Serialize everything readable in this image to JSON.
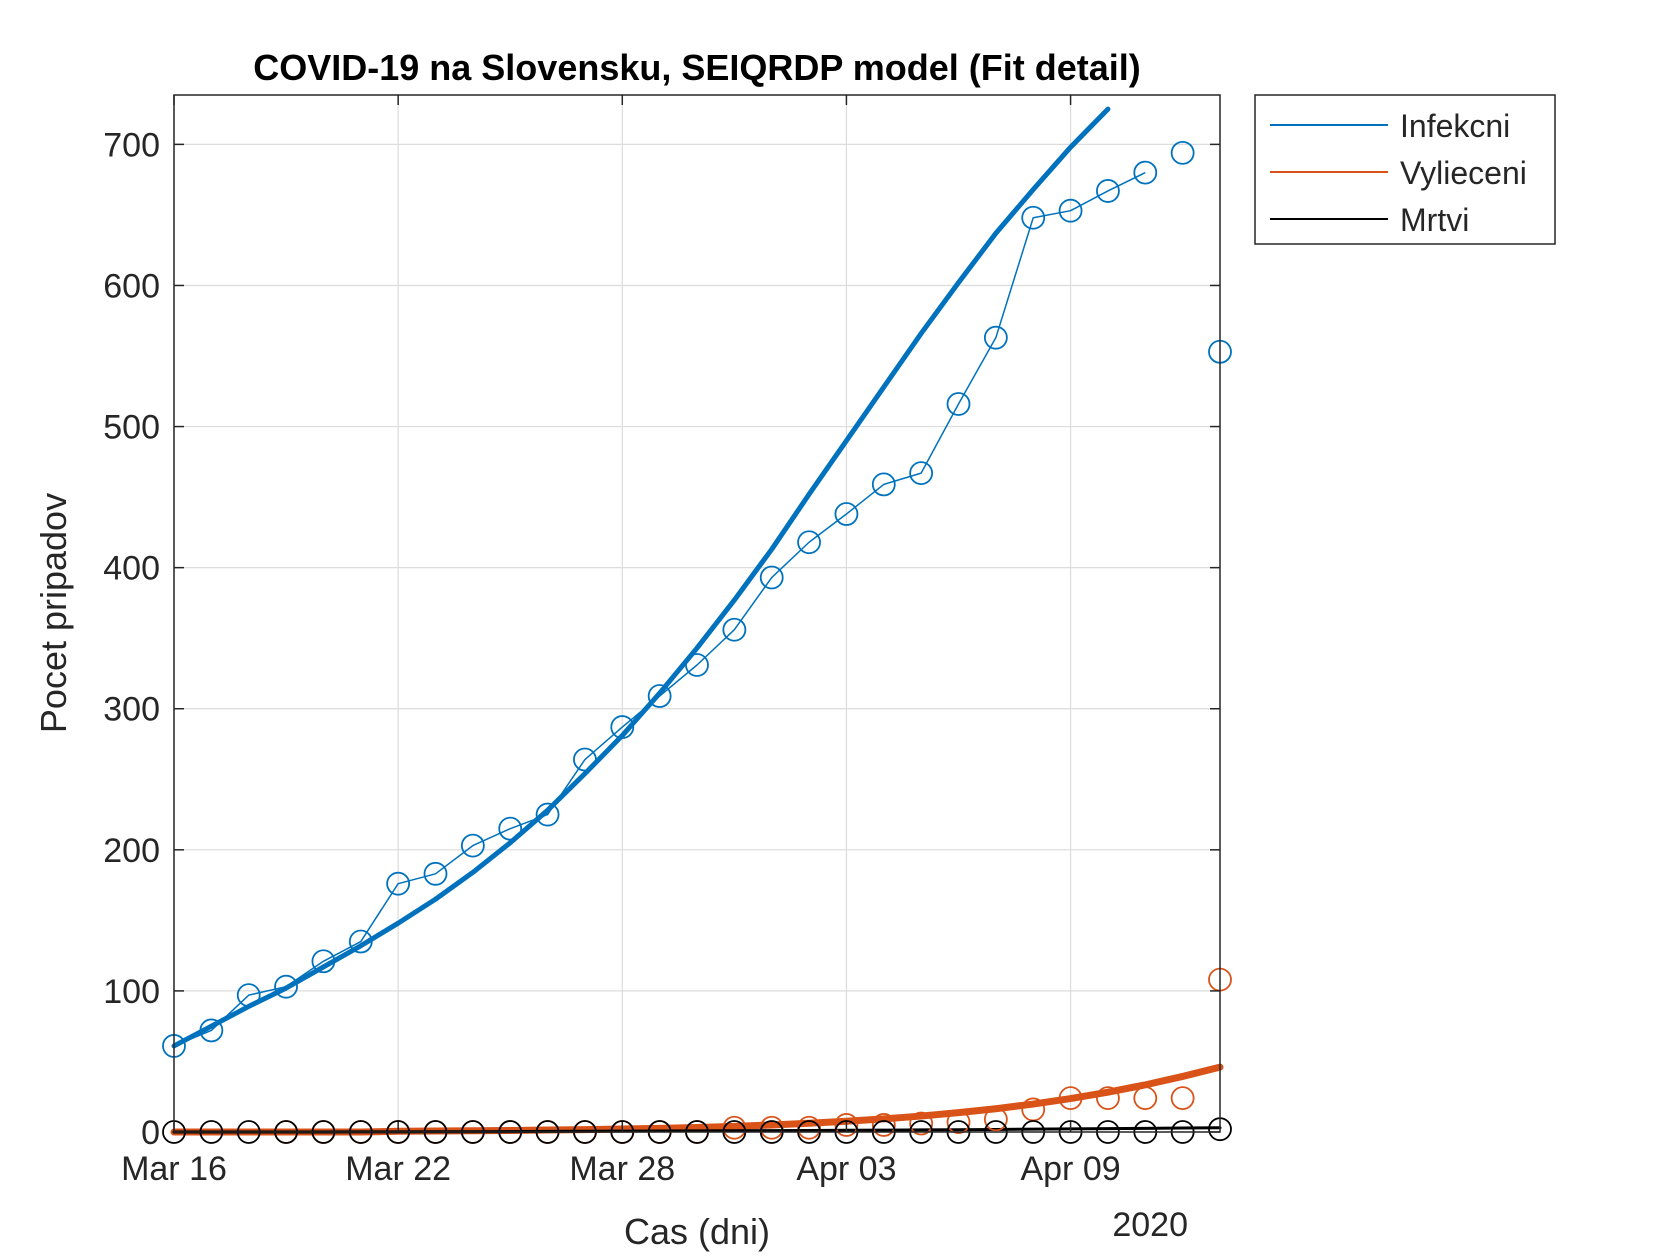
{
  "chart_data": {
    "type": "line",
    "title": "COVID-19 na Slovensku, SEIQRDP model (Fit detail)",
    "xlabel": "Cas (dni)",
    "ylabel": "Pocet pripadov",
    "x_tick_labels": [
      "Mar 16",
      "Mar 22",
      "Mar 28",
      "Apr 03",
      "Apr 09"
    ],
    "x_secondary_label": "2020",
    "y_tick_labels": [
      "0",
      "100",
      "200",
      "300",
      "400",
      "500",
      "600",
      "700"
    ],
    "xlim": [
      "2020-03-16",
      "2020-04-13"
    ],
    "ylim": [
      0,
      735
    ],
    "grid": true,
    "legend_position": "outside-top-right",
    "colors": {
      "infekcni": "#0072BD",
      "vylieceni": "#D95319",
      "mrtvi": "#000000",
      "grid": "#dcdcdc",
      "axis": "#262626"
    },
    "dates": [
      "2020-03-16",
      "2020-03-17",
      "2020-03-18",
      "2020-03-19",
      "2020-03-20",
      "2020-03-21",
      "2020-03-22",
      "2020-03-23",
      "2020-03-24",
      "2020-03-25",
      "2020-03-26",
      "2020-03-27",
      "2020-03-28",
      "2020-03-29",
      "2020-03-30",
      "2020-03-31",
      "2020-04-01",
      "2020-04-02",
      "2020-04-03",
      "2020-04-04",
      "2020-04-05",
      "2020-04-06",
      "2020-04-07",
      "2020-04-08",
      "2020-04-09",
      "2020-04-10",
      "2020-04-11",
      "2020-04-12",
      "2020-04-13"
    ],
    "series": [
      {
        "name": "Infekcni",
        "observed": [
          61,
          72,
          97,
          103,
          121,
          135,
          176,
          183,
          203,
          215,
          225,
          264,
          287,
          309,
          331,
          356,
          393,
          418,
          438,
          459,
          467,
          516,
          563,
          648,
          653,
          667,
          680,
          694,
          553
        ],
        "fitted": [
          61,
          75,
          89,
          102,
          117,
          132,
          148,
          165,
          184,
          205,
          228,
          254,
          281,
          311,
          343,
          377,
          413,
          452,
          490,
          528,
          566,
          602,
          637,
          668,
          698,
          725
        ]
      },
      {
        "name": "Vylieceni",
        "observed": [
          null,
          null,
          null,
          0,
          0,
          0,
          0,
          0,
          0,
          0,
          0,
          0,
          0,
          0,
          0,
          3,
          3,
          3,
          5,
          5,
          6,
          7,
          9,
          16,
          24,
          24,
          24,
          24,
          108
        ],
        "fitted": [
          0,
          0,
          0,
          0,
          0,
          0,
          0.5,
          0.7,
          0.9,
          1.1,
          1.4,
          1.7,
          2.1,
          2.6,
          3.2,
          4,
          5,
          6.2,
          7.6,
          9.3,
          11.3,
          13.7,
          16.5,
          19.8,
          23.7,
          28.2,
          33.4,
          39.4,
          46
        ]
      },
      {
        "name": "Mrtvi",
        "observed": [
          0,
          0,
          0,
          0,
          0,
          0,
          0,
          0,
          0,
          0,
          0,
          0,
          0,
          0,
          0,
          0,
          0,
          0,
          0,
          0,
          0,
          0,
          0,
          0,
          0,
          0,
          0,
          0,
          2
        ],
        "fitted": [
          0,
          0,
          0,
          0,
          0,
          0.1,
          0.1,
          0.2,
          0.2,
          0.3,
          0.4,
          0.5,
          0.6,
          0.7,
          0.8,
          0.9,
          1,
          1.1,
          1.2,
          1.3,
          1.5,
          1.6,
          1.8,
          2,
          2.2,
          2.4,
          2.6,
          2.8,
          3
        ]
      }
    ]
  }
}
